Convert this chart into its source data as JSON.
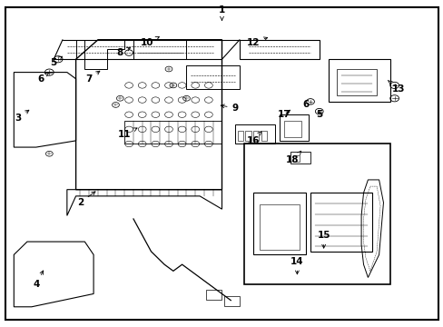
{
  "bg_color": "#ffffff",
  "border_color": "#000000",
  "line_color": "#000000",
  "text_color": "#000000",
  "fig_width": 4.89,
  "fig_height": 3.6,
  "dpi": 100,
  "label_data": {
    "1": [
      0.5,
      0.97,
      0.5,
      0.93
    ],
    "2": [
      0.18,
      0.38,
      0.22,
      0.42
    ],
    "3": [
      0.04,
      0.64,
      0.07,
      0.67
    ],
    "4": [
      0.08,
      0.13,
      0.1,
      0.18
    ],
    "5a": [
      0.12,
      0.81,
      0.14,
      0.83
    ],
    "6a": [
      0.09,
      0.76,
      0.11,
      0.78
    ],
    "7": [
      0.2,
      0.76,
      0.23,
      0.79
    ],
    "8": [
      0.27,
      0.84,
      0.3,
      0.86
    ],
    "9": [
      0.53,
      0.67,
      0.49,
      0.68
    ],
    "10": [
      0.33,
      0.87,
      0.36,
      0.89
    ],
    "11": [
      0.28,
      0.59,
      0.31,
      0.61
    ],
    "12": [
      0.57,
      0.87,
      0.61,
      0.89
    ],
    "13": [
      0.9,
      0.73,
      0.87,
      0.76
    ],
    "14": [
      0.67,
      0.2,
      0.67,
      0.15
    ],
    "15": [
      0.73,
      0.28,
      0.73,
      0.23
    ],
    "16": [
      0.57,
      0.57,
      0.59,
      0.6
    ],
    "17": [
      0.64,
      0.65,
      0.66,
      0.67
    ],
    "18": [
      0.66,
      0.51,
      0.68,
      0.54
    ],
    "5b": [
      0.72,
      0.65,
      0.72,
      0.65
    ],
    "6b": [
      0.69,
      0.68,
      0.69,
      0.68
    ]
  }
}
